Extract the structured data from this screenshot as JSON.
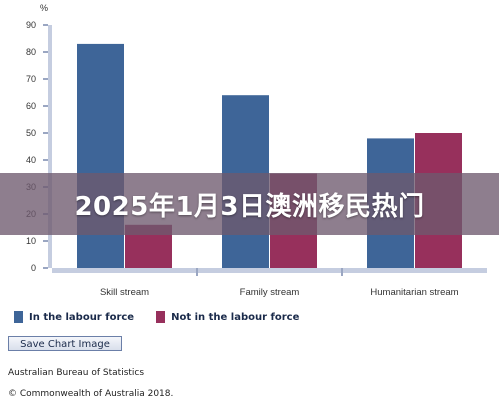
{
  "chart_data": {
    "type": "bar",
    "ylabel": "%",
    "ylim": [
      0,
      90
    ],
    "yticks": [
      0,
      10,
      20,
      30,
      40,
      50,
      60,
      70,
      80,
      90
    ],
    "categories": [
      "Skill stream",
      "Family stream",
      "Humanitarian stream"
    ],
    "series": [
      {
        "name": "In the labour force",
        "color": "#3e6598",
        "values": [
          83,
          64,
          48
        ]
      },
      {
        "name": "Not in the labour force",
        "color": "#97305c",
        "values": [
          16,
          35,
          50
        ]
      }
    ],
    "grid": false,
    "legend": "bottom"
  },
  "ui": {
    "save_button_label": "Save Chart Image",
    "source": "Australian Bureau of Statistics",
    "copyright": "© Commonwealth of Australia 2018.",
    "banner_title": "2025年1月3日澳洲移民热门"
  }
}
